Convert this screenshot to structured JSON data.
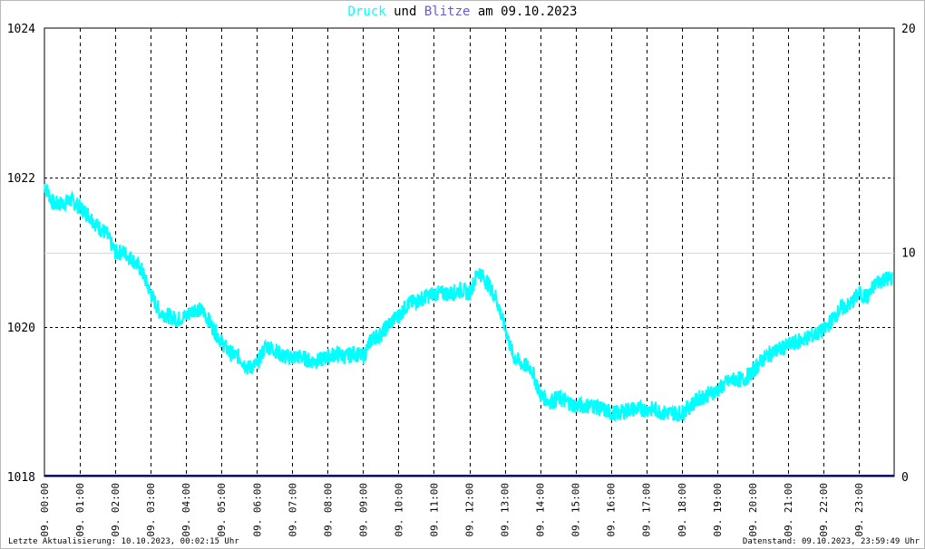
{
  "header": {
    "title_pressure": "Druck",
    "title_and": " und ",
    "title_lightning": "Blitze",
    "title_date": " am 09.10.2023"
  },
  "footer": {
    "last_update": "Letzte Aktualisierung: 10.10.2023, 00:02:15 Uhr",
    "data_status": "Datenstand: 09.10.2023, 23:59:49 Uhr"
  },
  "chart_data": {
    "type": "line",
    "title": "Druck und Blitze am 09.10.2023",
    "x_tick_labels": [
      "09. 00:00",
      "09. 01:00",
      "09. 02:00",
      "09. 03:00",
      "09. 04:00",
      "09. 05:00",
      "09. 06:00",
      "09. 07:00",
      "09. 08:00",
      "09. 09:00",
      "09. 10:00",
      "09. 11:00",
      "09. 12:00",
      "09. 13:00",
      "09. 14:00",
      "09. 15:00",
      "09. 16:00",
      "09. 17:00",
      "09. 18:00",
      "09. 19:00",
      "09. 20:00",
      "09. 21:00",
      "09. 22:00",
      "09. 23:00"
    ],
    "xlim": [
      0,
      24
    ],
    "ylim_left": [
      1018,
      1024
    ],
    "yticks_left": [
      "1018",
      "1020",
      "1022",
      "1024"
    ],
    "ylim_right": [
      0,
      20
    ],
    "yticks_right": [
      "0",
      "10",
      "20"
    ],
    "grid": true,
    "series": [
      {
        "name": "Druck",
        "axis": "left",
        "color": "#00ffff",
        "x": [
          0.0,
          0.25,
          0.5,
          0.75,
          1.0,
          1.25,
          1.5,
          1.75,
          2.0,
          2.25,
          2.5,
          2.75,
          3.0,
          3.25,
          3.5,
          3.75,
          4.0,
          4.25,
          4.5,
          4.75,
          5.0,
          5.25,
          5.5,
          5.75,
          6.0,
          6.25,
          6.5,
          6.75,
          7.0,
          7.25,
          7.5,
          7.75,
          8.0,
          8.25,
          8.5,
          8.75,
          9.0,
          9.25,
          9.5,
          9.75,
          10.0,
          10.25,
          10.5,
          10.75,
          11.0,
          11.25,
          11.5,
          11.75,
          12.0,
          12.25,
          12.5,
          12.75,
          13.0,
          13.25,
          13.5,
          13.75,
          14.0,
          14.25,
          14.5,
          14.75,
          15.0,
          15.25,
          15.5,
          15.75,
          16.0,
          16.25,
          16.5,
          16.75,
          17.0,
          17.25,
          17.5,
          17.75,
          18.0,
          18.25,
          18.5,
          18.75,
          19.0,
          19.25,
          19.5,
          19.75,
          20.0,
          20.25,
          20.5,
          20.75,
          21.0,
          21.25,
          21.5,
          21.75,
          22.0,
          22.25,
          22.5,
          22.75,
          23.0,
          23.25,
          23.5,
          23.75
        ],
        "values": [
          1021.9,
          1021.65,
          1021.65,
          1021.7,
          1021.6,
          1021.5,
          1021.35,
          1021.25,
          1021.0,
          1021.0,
          1020.9,
          1020.75,
          1020.45,
          1020.2,
          1020.15,
          1020.1,
          1020.15,
          1020.25,
          1020.2,
          1020.0,
          1019.8,
          1019.65,
          1019.6,
          1019.45,
          1019.5,
          1019.75,
          1019.7,
          1019.6,
          1019.6,
          1019.6,
          1019.55,
          1019.55,
          1019.6,
          1019.65,
          1019.6,
          1019.65,
          1019.6,
          1019.85,
          1019.9,
          1020.05,
          1020.15,
          1020.3,
          1020.35,
          1020.4,
          1020.45,
          1020.45,
          1020.45,
          1020.5,
          1020.45,
          1020.75,
          1020.6,
          1020.4,
          1020.0,
          1019.6,
          1019.5,
          1019.45,
          1019.1,
          1019.0,
          1019.05,
          1019.0,
          1018.95,
          1018.95,
          1018.95,
          1018.9,
          1018.85,
          1018.85,
          1018.9,
          1018.9,
          1018.9,
          1018.9,
          1018.85,
          1018.85,
          1018.85,
          1018.95,
          1019.05,
          1019.1,
          1019.15,
          1019.25,
          1019.3,
          1019.3,
          1019.4,
          1019.55,
          1019.65,
          1019.7,
          1019.75,
          1019.8,
          1019.85,
          1019.9,
          1019.95,
          1020.1,
          1020.25,
          1020.3,
          1020.45,
          1020.4,
          1020.6,
          1020.65
        ]
      },
      {
        "name": "Blitze",
        "axis": "right",
        "color": "#000080",
        "x": [
          0,
          24
        ],
        "values": [
          0,
          0
        ]
      }
    ]
  }
}
